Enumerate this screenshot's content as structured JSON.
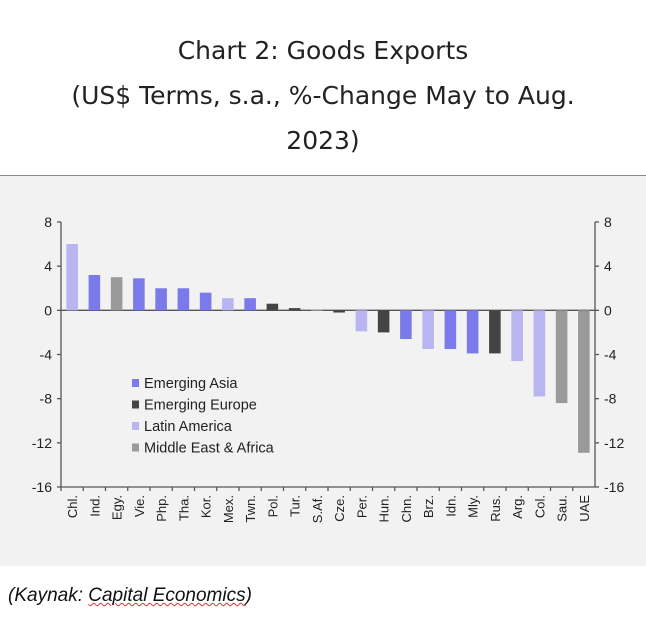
{
  "chart_data": {
    "type": "bar",
    "title_lines": [
      "Chart 2: Goods Exports",
      "(US$ Terms, s.a., %-Change May to Aug.",
      "2023)"
    ],
    "categories": [
      "Chl.",
      "Ind.",
      "Egy.",
      "Vie.",
      "Php.",
      "Tha.",
      "Kor.",
      "Mex.",
      "Twn.",
      "Pol.",
      "Tur.",
      "S.Af.",
      "Cze.",
      "Per.",
      "Hun.",
      "Chn.",
      "Brz.",
      "Idn.",
      "Mly.",
      "Rus.",
      "Arg.",
      "Col.",
      "Sau.",
      "UAE"
    ],
    "values": [
      6.0,
      3.2,
      3.0,
      2.9,
      2.0,
      2.0,
      1.6,
      1.1,
      1.1,
      0.6,
      0.2,
      0.05,
      -0.2,
      -1.9,
      -2.0,
      -2.6,
      -3.5,
      -3.5,
      -3.9,
      -3.9,
      -4.6,
      -7.8,
      -8.4,
      -12.9
    ],
    "groups": [
      2,
      0,
      3,
      0,
      0,
      0,
      0,
      2,
      0,
      1,
      1,
      3,
      1,
      2,
      1,
      0,
      2,
      0,
      0,
      1,
      2,
      2,
      3,
      3
    ],
    "legend": [
      {
        "name": "Emerging Asia",
        "color": "#7a7aea"
      },
      {
        "name": "Emerging Europe",
        "color": "#444444"
      },
      {
        "name": "Latin America",
        "color": "#b8b5f0"
      },
      {
        "name": "Middle East & Africa",
        "color": "#9a9a9a"
      }
    ],
    "legend_position": "center-left",
    "yticks": [
      8,
      4,
      0,
      -4,
      -8,
      -12,
      -16
    ],
    "ylim": [
      -16,
      8
    ],
    "xlabel": "",
    "ylabel": ""
  },
  "caption": {
    "prefix": "(Kaynak: ",
    "source": "Capital Economics",
    "suffix": ")"
  }
}
